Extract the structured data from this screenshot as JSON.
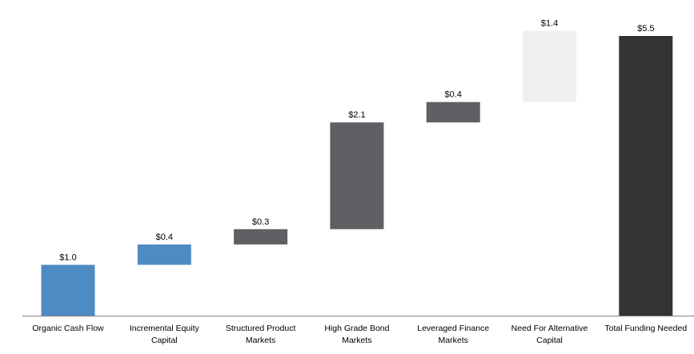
{
  "chart_data": {
    "type": "bar",
    "subtype": "waterfall",
    "title": "",
    "xlabel": "",
    "ylabel": "",
    "ylim": [
      0,
      5.5
    ],
    "grid": false,
    "legend": "none",
    "categories": [
      [
        "Organic Cash Flow"
      ],
      [
        "Incremental Equity",
        "Capital"
      ],
      [
        "Structured Product",
        "Markets"
      ],
      [
        "High Grade Bond",
        "Markets"
      ],
      [
        "Leveraged Finance",
        "Markets"
      ],
      [
        "Need For Alternative",
        "Capital"
      ],
      [
        "Total Funding Needed"
      ]
    ],
    "values": [
      1.0,
      0.4,
      0.3,
      2.1,
      0.4,
      1.4,
      5.5
    ],
    "bases": [
      0,
      1.0,
      1.4,
      1.7,
      3.8,
      4.2,
      0
    ],
    "value_labels": [
      "$1.0",
      "$0.4",
      "$0.3",
      "$2.1",
      "$0.4",
      "$1.4",
      "$5.5"
    ],
    "colors": [
      "#4f8bc3",
      "#4f8bc3",
      "#5f6063",
      "#5f6063",
      "#5f6063",
      "#f0f0f0",
      "#333333"
    ],
    "axis_color": "#7f7f7f"
  }
}
